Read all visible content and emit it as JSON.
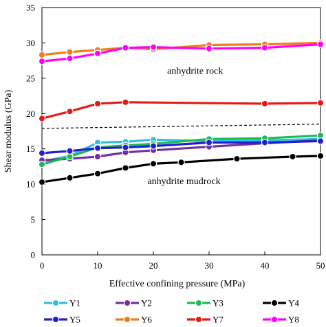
{
  "chart_data": {
    "type": "line",
    "xlabel": "Effective confining pressure (MPa)",
    "ylabel": "Shear modulus (GPa)",
    "xlim": [
      0,
      50
    ],
    "ylim": [
      0,
      35
    ],
    "xticks": [
      0,
      10,
      20,
      30,
      40,
      50
    ],
    "yticks": [
      0,
      5,
      10,
      15,
      20,
      25,
      30,
      35
    ],
    "grid": false,
    "legend_position": "bottom",
    "series": [
      {
        "name": "Y1",
        "color": "#33bde2",
        "x": [
          0,
          5,
          10,
          15,
          20,
          30,
          40,
          50
        ],
        "y": [
          13.2,
          14.0,
          15.9,
          16.0,
          16.3,
          16.1,
          16.2,
          16.4
        ]
      },
      {
        "name": "Y2",
        "color": "#7030a0",
        "x": [
          0,
          5,
          10,
          15,
          20,
          30,
          40,
          50
        ],
        "y": [
          13.4,
          13.6,
          13.9,
          14.5,
          14.8,
          15.3,
          15.8,
          16.2
        ]
      },
      {
        "name": "Y3",
        "color": "#1db954",
        "x": [
          0,
          5,
          10,
          15,
          20,
          30,
          40,
          50
        ],
        "y": [
          12.8,
          13.9,
          15.2,
          15.5,
          15.7,
          16.4,
          16.5,
          16.9
        ]
      },
      {
        "name": "Y4",
        "color": "#000000",
        "x": [
          0,
          5,
          10,
          15,
          20,
          25,
          35,
          45,
          50
        ],
        "y": [
          10.3,
          10.9,
          11.5,
          12.3,
          12.9,
          13.1,
          13.6,
          13.9,
          14.0
        ]
      },
      {
        "name": "Y5",
        "color": "#2020d0",
        "x": [
          0,
          5,
          10,
          15,
          20,
          30,
          40,
          50
        ],
        "y": [
          14.4,
          14.7,
          15.1,
          15.2,
          15.4,
          15.9,
          15.9,
          16.1
        ]
      },
      {
        "name": "Y6",
        "color": "#f07d1a",
        "x": [
          0,
          5,
          10,
          15,
          20,
          30,
          40,
          50
        ],
        "y": [
          28.3,
          28.7,
          29.0,
          29.3,
          29.1,
          29.7,
          29.8,
          30.0
        ]
      },
      {
        "name": "Y7",
        "color": "#e41a1a",
        "x": [
          0,
          5,
          10,
          15,
          40,
          50
        ],
        "y": [
          19.3,
          20.3,
          21.4,
          21.6,
          21.4,
          21.5
        ]
      },
      {
        "name": "Y8",
        "color": "#ff00ff",
        "x": [
          0,
          5,
          10,
          15,
          20,
          30,
          40,
          50
        ],
        "y": [
          27.4,
          27.8,
          28.5,
          29.3,
          29.4,
          29.2,
          29.3,
          29.8
        ]
      }
    ],
    "reference_line": {
      "style": "dashed",
      "color": "#000000",
      "x": [
        0,
        50
      ],
      "y": [
        17.9,
        18.5
      ]
    },
    "annotations": [
      {
        "text": "anhydrite rock",
        "x": 27.5,
        "y": 25.6
      },
      {
        "text": "anhydrite mudrock",
        "x": 25.5,
        "y": 10.0
      }
    ]
  }
}
